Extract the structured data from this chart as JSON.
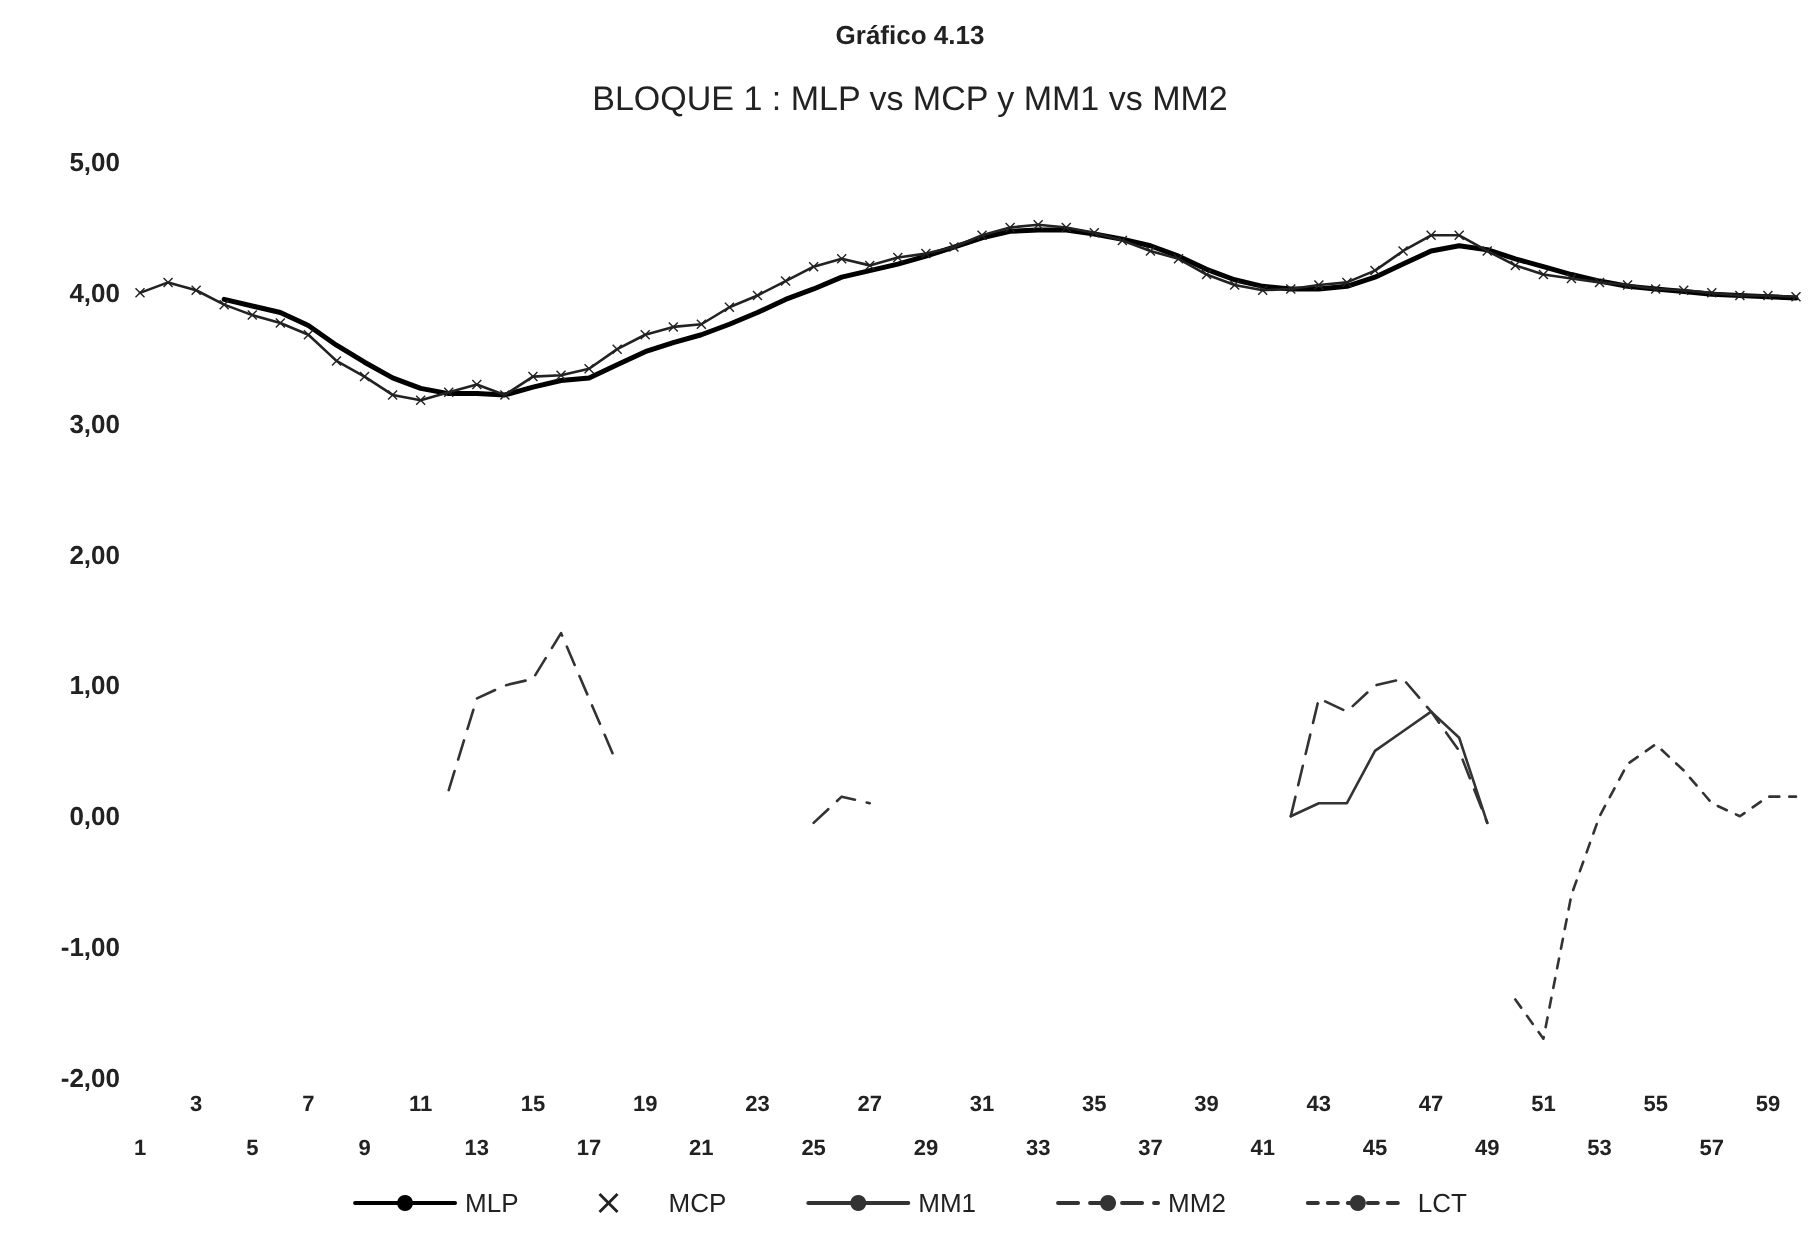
{
  "chart_data": {
    "type": "line",
    "title": "Gráfico 4.13",
    "subtitle": "BLOQUE 1 : MLP vs MCP y MM1 vs MM2",
    "categories": [
      "1",
      null,
      "3",
      null,
      "5",
      null,
      "7",
      null,
      "9",
      null,
      "11",
      null,
      "13",
      null,
      "15",
      null,
      "17",
      null,
      "19",
      null,
      "21",
      null,
      "23",
      null,
      "25",
      null,
      "27",
      null,
      "29",
      null,
      "31",
      null,
      "33",
      null,
      "35",
      null,
      "37",
      null,
      "39",
      null,
      "41",
      null,
      "43",
      null,
      "45",
      null,
      "47",
      null,
      "49",
      null,
      "51",
      null,
      "53",
      null,
      "55",
      null,
      "57",
      null,
      "59",
      null
    ],
    "ylim": [
      -2,
      5
    ],
    "yticks": [
      {
        "value": -2,
        "label": "-2,00"
      },
      {
        "value": -1,
        "label": "-1,00"
      },
      {
        "value": 0,
        "label": "0,00"
      },
      {
        "value": 1,
        "label": "1,00"
      },
      {
        "value": 2,
        "label": "2,00"
      },
      {
        "value": 3,
        "label": "3,00"
      },
      {
        "value": 4,
        "label": "4,00"
      },
      {
        "value": 5,
        "label": "5,00"
      }
    ],
    "grid": false,
    "legend": "bottom",
    "series": [
      {
        "name": "MLP",
        "color": "#000000",
        "line_style": "solid",
        "marker": "none",
        "values": [
          null,
          null,
          null,
          3.95,
          3.9,
          3.85,
          3.75,
          3.6,
          3.47,
          3.35,
          3.27,
          3.23,
          3.23,
          3.22,
          3.28,
          3.33,
          3.35,
          3.45,
          3.55,
          3.62,
          3.68,
          3.76,
          3.85,
          3.95,
          4.03,
          4.12,
          4.17,
          4.22,
          4.28,
          4.35,
          4.42,
          4.47,
          4.48,
          4.48,
          4.45,
          4.41,
          4.36,
          4.28,
          4.18,
          4.1,
          4.05,
          4.03,
          4.03,
          4.05,
          4.12,
          4.22,
          4.32,
          4.36,
          4.33,
          4.26,
          4.2,
          4.14,
          4.09,
          4.05,
          4.03,
          4.01,
          3.99,
          3.98,
          3.97,
          3.96
        ]
      },
      {
        "name": "MCP",
        "color": "#222222",
        "line_style": "solid",
        "marker": "cross",
        "values": [
          4.0,
          4.08,
          4.02,
          3.91,
          3.83,
          3.77,
          3.68,
          3.48,
          3.36,
          3.22,
          3.18,
          3.24,
          3.3,
          3.22,
          3.36,
          3.37,
          3.42,
          3.57,
          3.68,
          3.74,
          3.76,
          3.89,
          3.98,
          4.09,
          4.2,
          4.26,
          4.21,
          4.27,
          4.3,
          4.35,
          4.44,
          4.5,
          4.52,
          4.5,
          4.46,
          4.4,
          4.32,
          4.26,
          4.14,
          4.06,
          4.02,
          4.03,
          4.06,
          4.08,
          4.17,
          4.32,
          4.44,
          4.44,
          4.32,
          4.21,
          4.14,
          4.11,
          4.08,
          4.06,
          4.03,
          4.02,
          4.0,
          3.98,
          3.98,
          3.97
        ]
      },
      {
        "name": "MM1",
        "color": "#333333",
        "line_style": "solid",
        "marker": "none",
        "values": [
          null,
          null,
          null,
          null,
          null,
          null,
          null,
          null,
          null,
          null,
          null,
          null,
          null,
          null,
          null,
          null,
          null,
          null,
          null,
          null,
          null,
          null,
          null,
          null,
          null,
          null,
          null,
          null,
          null,
          null,
          null,
          null,
          null,
          null,
          null,
          null,
          null,
          null,
          null,
          null,
          null,
          0.0,
          0.1,
          0.1,
          0.5,
          0.65,
          0.8,
          0.6,
          -0.05,
          null,
          null,
          null,
          null,
          null,
          null,
          null,
          null,
          null,
          null,
          null
        ]
      },
      {
        "name": "MM2",
        "color": "#333333",
        "line_style": "dashed",
        "marker": "none",
        "values": [
          null,
          null,
          null,
          null,
          null,
          null,
          null,
          null,
          null,
          null,
          null,
          0.2,
          0.9,
          1.0,
          1.05,
          1.4,
          0.9,
          0.4,
          null,
          null,
          null,
          null,
          null,
          null,
          -0.05,
          0.15,
          0.1,
          null,
          null,
          null,
          null,
          null,
          null,
          null,
          null,
          null,
          null,
          null,
          null,
          null,
          null,
          0.0,
          0.9,
          0.8,
          1.0,
          1.05,
          0.8,
          0.5,
          -0.05,
          null,
          null,
          null,
          null,
          null,
          null,
          null,
          null,
          null,
          null,
          null
        ]
      },
      {
        "name": "LCT",
        "color": "#333333",
        "line_style": "dotted",
        "marker": "none",
        "values": [
          null,
          null,
          null,
          null,
          null,
          null,
          null,
          null,
          null,
          null,
          null,
          null,
          null,
          null,
          null,
          null,
          null,
          null,
          null,
          null,
          null,
          null,
          null,
          null,
          null,
          null,
          null,
          null,
          null,
          null,
          null,
          null,
          null,
          null,
          null,
          null,
          null,
          null,
          null,
          null,
          null,
          null,
          null,
          null,
          null,
          null,
          null,
          null,
          null,
          -1.4,
          -1.7,
          -0.6,
          0.0,
          0.4,
          0.55,
          0.35,
          0.1,
          0.0,
          0.15,
          0.15
        ]
      }
    ]
  }
}
